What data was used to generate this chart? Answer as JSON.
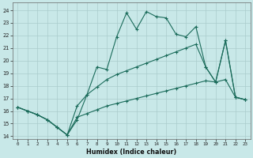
{
  "xlabel": "Humidex (Indice chaleur)",
  "bg_color": "#c8e8e8",
  "grid_color": "#aacccc",
  "line_color": "#1a6b5a",
  "xlim": [
    -0.5,
    23.5
  ],
  "ylim": [
    13.8,
    24.6
  ],
  "yticks": [
    14,
    15,
    16,
    17,
    18,
    19,
    20,
    21,
    22,
    23,
    24
  ],
  "xticks": [
    0,
    1,
    2,
    3,
    4,
    5,
    6,
    7,
    8,
    9,
    10,
    11,
    12,
    13,
    14,
    15,
    16,
    17,
    18,
    19,
    20,
    21,
    22,
    23
  ],
  "line1_x": [
    0,
    1,
    2,
    3,
    4,
    5,
    6,
    7,
    8,
    9,
    10,
    11,
    12,
    13,
    14,
    15,
    16,
    17,
    18,
    19,
    20,
    21,
    22,
    23
  ],
  "line1_y": [
    16.3,
    16.0,
    15.7,
    15.3,
    14.7,
    14.1,
    15.3,
    17.3,
    19.5,
    19.3,
    21.9,
    23.8,
    22.5,
    23.9,
    23.5,
    23.4,
    22.1,
    21.9,
    22.7,
    19.5,
    18.3,
    21.6,
    17.1,
    16.9
  ],
  "line2_x": [
    0,
    1,
    2,
    3,
    4,
    5,
    6,
    7,
    8,
    9,
    10,
    11,
    12,
    13,
    14,
    15,
    16,
    17,
    18,
    19,
    20,
    21,
    22,
    23
  ],
  "line2_y": [
    16.3,
    16.0,
    15.7,
    15.3,
    14.7,
    14.1,
    16.4,
    17.3,
    17.9,
    18.5,
    18.9,
    19.2,
    19.5,
    19.8,
    20.1,
    20.4,
    20.7,
    21.0,
    21.3,
    19.5,
    18.3,
    21.6,
    17.1,
    16.9
  ],
  "line3_x": [
    0,
    1,
    2,
    3,
    4,
    5,
    6,
    7,
    8,
    9,
    10,
    11,
    12,
    13,
    14,
    15,
    16,
    17,
    18,
    19,
    20,
    21,
    22,
    23
  ],
  "line3_y": [
    16.3,
    16.0,
    15.7,
    15.3,
    14.7,
    14.1,
    15.5,
    15.8,
    16.1,
    16.4,
    16.6,
    16.8,
    17.0,
    17.2,
    17.4,
    17.6,
    17.8,
    18.0,
    18.2,
    18.4,
    18.3,
    18.5,
    17.1,
    16.9
  ]
}
